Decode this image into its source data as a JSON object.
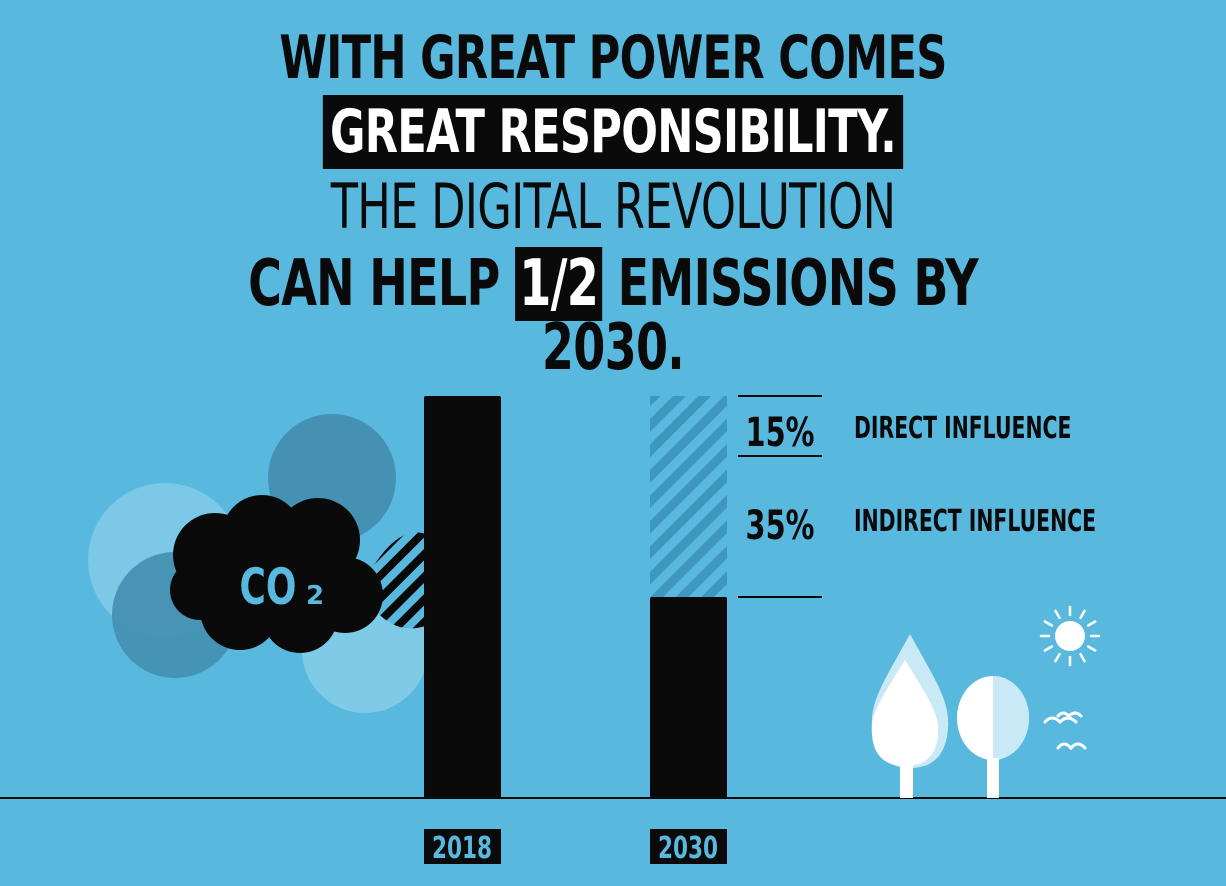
{
  "headline": {
    "line1": "WITH GREAT POWER COMES",
    "line2": "GREAT RESPONSIBILITY.",
    "line3": "THE DIGITAL REVOLUTION",
    "line4_pre": "CAN HELP",
    "line4_highlight": "1/2",
    "line4_post": "EMISSIONS BY 2030."
  },
  "co2_label": {
    "main": "CO",
    "sub": "2"
  },
  "chart_data": {
    "type": "bar",
    "categories": [
      "2018",
      "2030"
    ],
    "values": [
      100,
      50
    ],
    "stacked_reductions": [
      {
        "label": "DIRECT INFLUENCE",
        "percent": "15%",
        "value": 15
      },
      {
        "label": "INDIRECT INFLUENCE",
        "percent": "35%",
        "value": 35
      }
    ],
    "ylim": [
      0,
      100
    ],
    "grid": false
  },
  "colors": {
    "background": "#58b8de",
    "bar": "#0a0a0a",
    "hatch": "#3f97bd",
    "circle_light": "#7fcbe7",
    "circle_dark": "#4591b3",
    "tree_white": "#ffffff",
    "tree_light": "#c9e9f6"
  }
}
